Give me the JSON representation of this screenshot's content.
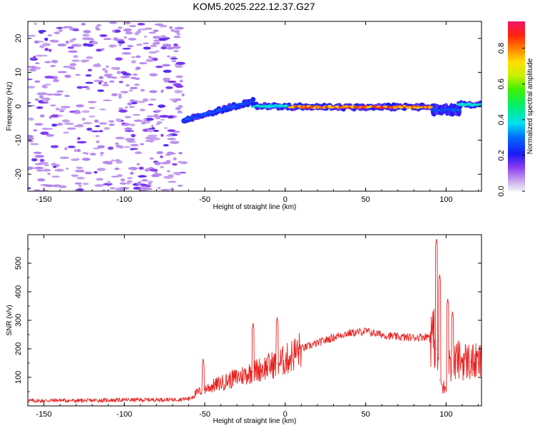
{
  "title": "KOM5.2025.222.12.37.G27",
  "chart_data": [
    {
      "type": "heatmap",
      "xlabel": "Height of straight line (km)",
      "ylabel": "Frequency (Hz)",
      "xlim": [
        -160,
        122
      ],
      "ylim": [
        -25,
        25
      ],
      "xticks": [
        -150,
        -100,
        -50,
        0,
        50,
        100
      ],
      "yticks": [
        -20,
        -10,
        0,
        10,
        20
      ],
      "colorbar": {
        "label": "Normalized spectral amplitude",
        "range": [
          0.0,
          0.95
        ],
        "ticks": [
          0.0,
          0.2,
          0.4,
          0.6,
          0.8
        ]
      },
      "segments": [
        {
          "x_from": -160,
          "x_to": -63,
          "kind": "scattered noise",
          "amplitude": 0.12
        },
        {
          "x_from": -63,
          "x_to": -20,
          "freq_from": -4,
          "freq_to": 1.5,
          "amplitude": 0.3
        },
        {
          "x_from": -20,
          "x_to": 3,
          "freq": 0,
          "amplitude": 0.45
        },
        {
          "x_from": 3,
          "x_to": 92,
          "freq": -0.2,
          "amplitude": 0.9
        },
        {
          "x_from": 92,
          "x_to": 108,
          "freq": -1,
          "kind": "broadened",
          "amplitude": 0.3
        },
        {
          "x_from": 108,
          "x_to": 122,
          "freq": 0.5,
          "amplitude": 0.45
        }
      ]
    },
    {
      "type": "line",
      "xlabel": "Height of straight line (km)",
      "ylabel": "SNR (v/v)",
      "xlim": [
        -160,
        122
      ],
      "ylim": [
        0,
        600
      ],
      "xticks": [
        -150,
        -100,
        -50,
        0,
        50,
        100
      ],
      "yticks": [
        100,
        200,
        300,
        400,
        500
      ],
      "series": [
        {
          "name": "SNR",
          "color": "#e8201e",
          "x": [
            -160,
            -150,
            -140,
            -130,
            -120,
            -110,
            -100,
            -90,
            -80,
            -70,
            -60,
            -55,
            -50,
            -45,
            -40,
            -35,
            -30,
            -25,
            -20,
            -15,
            -10,
            -5,
            0,
            5,
            10,
            15,
            20,
            25,
            30,
            35,
            40,
            45,
            50,
            55,
            60,
            65,
            70,
            75,
            80,
            85,
            90,
            92,
            94,
            96,
            98,
            100,
            102,
            104,
            106,
            110,
            115,
            120,
            122
          ],
          "values": [
            18,
            18,
            20,
            18,
            19,
            20,
            21,
            21,
            22,
            22,
            25,
            45,
            60,
            70,
            80,
            90,
            100,
            110,
            120,
            130,
            140,
            150,
            160,
            180,
            200,
            210,
            220,
            230,
            240,
            250,
            255,
            258,
            262,
            255,
            250,
            245,
            242,
            240,
            240,
            242,
            245,
            250,
            200,
            90,
            60,
            80,
            180,
            120,
            160,
            160,
            155,
            150,
            155
          ]
        }
      ],
      "spikes": [
        {
          "x": -51,
          "value": 165
        },
        {
          "x": -20,
          "value": 290
        },
        {
          "x": -5,
          "value": 310
        },
        {
          "x": 94,
          "value": 585
        },
        {
          "x": 96,
          "value": 460
        },
        {
          "x": 101,
          "value": 375
        },
        {
          "x": 104,
          "value": 330
        }
      ]
    }
  ]
}
